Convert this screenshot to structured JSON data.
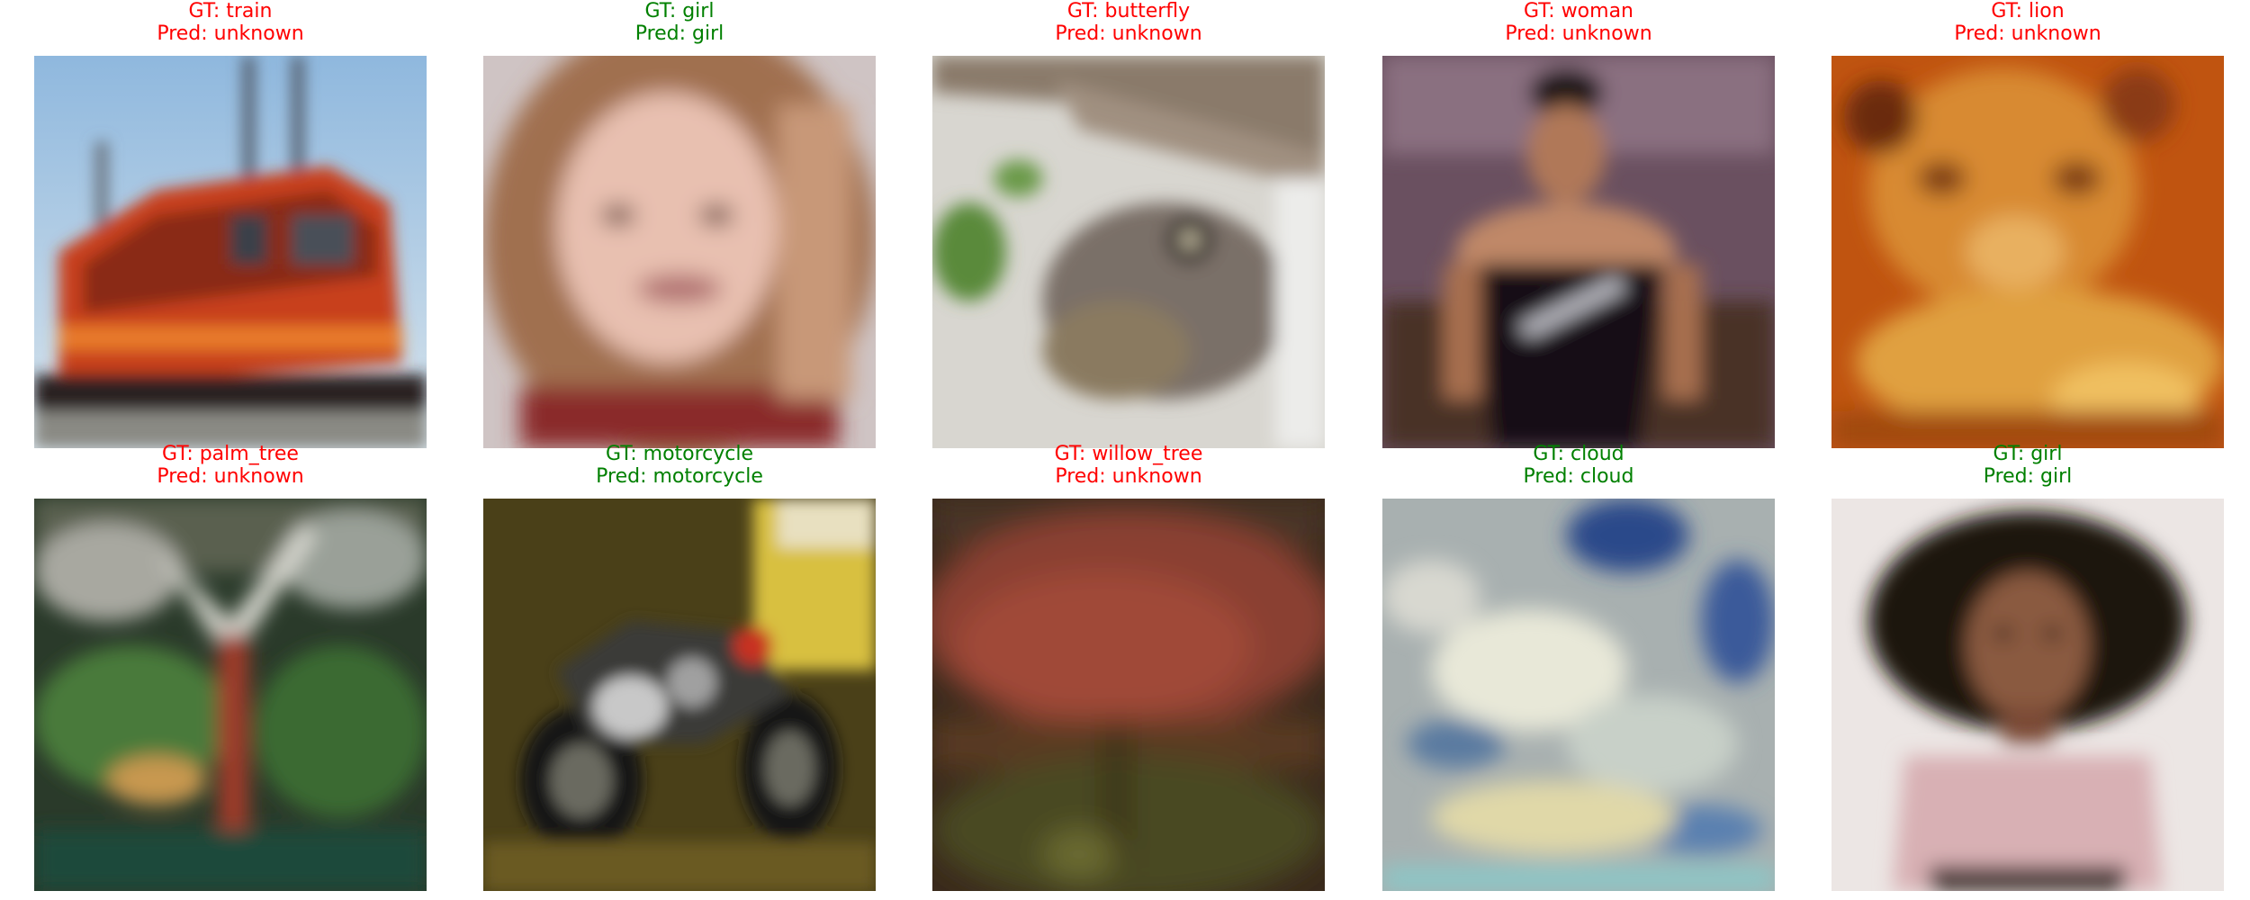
{
  "colors": {
    "correct": "#008000",
    "incorrect": "#ff0000"
  },
  "samples": [
    {
      "gt_label": "GT: train",
      "pred_label": "Pred: unknown",
      "correct": false,
      "image_name": "train-image"
    },
    {
      "gt_label": "GT: girl",
      "pred_label": "Pred: girl",
      "correct": true,
      "image_name": "girl-portrait-image"
    },
    {
      "gt_label": "GT: butterfly",
      "pred_label": "Pred: unknown",
      "correct": false,
      "image_name": "butterfly-image"
    },
    {
      "gt_label": "GT: woman",
      "pred_label": "Pred: unknown",
      "correct": false,
      "image_name": "woman-image"
    },
    {
      "gt_label": "GT: lion",
      "pred_label": "Pred: unknown",
      "correct": false,
      "image_name": "lion-image"
    },
    {
      "gt_label": "GT: palm_tree",
      "pred_label": "Pred: unknown",
      "correct": false,
      "image_name": "palm-tree-image"
    },
    {
      "gt_label": "GT: motorcycle",
      "pred_label": "Pred: motorcycle",
      "correct": true,
      "image_name": "motorcycle-image"
    },
    {
      "gt_label": "GT: willow_tree",
      "pred_label": "Pred: unknown",
      "correct": false,
      "image_name": "willow-tree-image"
    },
    {
      "gt_label": "GT: cloud",
      "pred_label": "Pred: cloud",
      "correct": true,
      "image_name": "cloud-image"
    },
    {
      "gt_label": "GT: girl",
      "pred_label": "Pred: girl",
      "correct": true,
      "image_name": "girl-dark-hair-image"
    }
  ]
}
